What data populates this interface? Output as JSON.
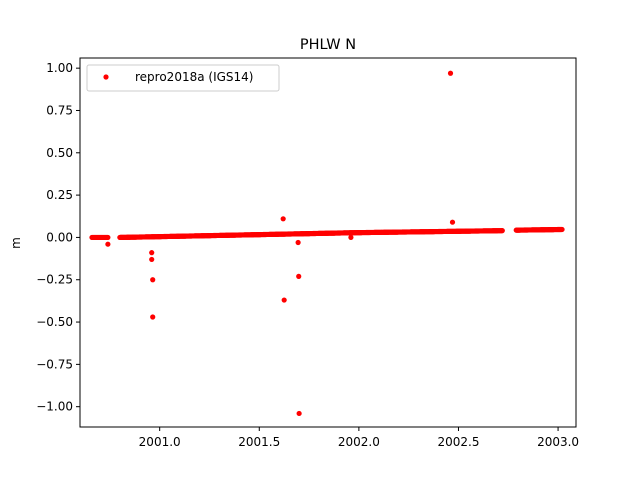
{
  "chart_data": {
    "type": "scatter",
    "title": "PHLW N",
    "xlabel": "",
    "ylabel": "m",
    "xlim": [
      2000.6,
      2003.09
    ],
    "ylim": [
      -1.12,
      1.06
    ],
    "xticks": [
      2001.0,
      2001.5,
      2002.0,
      2002.5,
      2003.0
    ],
    "xtick_labels": [
      "2001.0",
      "2001.5",
      "2002.0",
      "2002.5",
      "2003.0"
    ],
    "yticks": [
      1.0,
      0.75,
      0.5,
      0.25,
      0.0,
      -0.25,
      -0.5,
      -0.75,
      -1.0
    ],
    "ytick_labels": [
      "1.00",
      "0.75",
      "0.50",
      "0.25",
      "0.00",
      "−0.25",
      "−0.50",
      "−0.75",
      "−1.00"
    ],
    "grid": false,
    "legend_position": "top-left",
    "series": [
      {
        "name": "repro2018a (IGS14)",
        "color": "#ff0000",
        "marker": "circle",
        "segments": [
          {
            "x_start": 2000.66,
            "x_end": 2000.74,
            "y_start": 0.0,
            "y_end": 0.0,
            "step": 0.0028
          },
          {
            "x_start": 2000.8,
            "x_end": 2001.98,
            "y_start": 0.0,
            "y_end": 0.028,
            "step": 0.0028
          },
          {
            "x_start": 2001.98,
            "x_end": 2002.72,
            "y_start": 0.028,
            "y_end": 0.04,
            "step": 0.0028
          },
          {
            "x_start": 2002.79,
            "x_end": 2003.02,
            "y_start": 0.043,
            "y_end": 0.047,
            "step": 0.0028
          }
        ],
        "points": [
          {
            "x": 2000.74,
            "y": -0.04
          },
          {
            "x": 2000.96,
            "y": -0.09
          },
          {
            "x": 2000.96,
            "y": -0.13
          },
          {
            "x": 2000.965,
            "y": -0.25
          },
          {
            "x": 2000.965,
            "y": -0.47
          },
          {
            "x": 2001.62,
            "y": 0.11
          },
          {
            "x": 2001.625,
            "y": -0.37
          },
          {
            "x": 2001.695,
            "y": -0.03
          },
          {
            "x": 2001.698,
            "y": -0.23
          },
          {
            "x": 2001.7,
            "y": -1.04
          },
          {
            "x": 2001.96,
            "y": 0.0
          },
          {
            "x": 2002.46,
            "y": 0.97
          },
          {
            "x": 2002.47,
            "y": 0.09
          }
        ]
      }
    ]
  }
}
